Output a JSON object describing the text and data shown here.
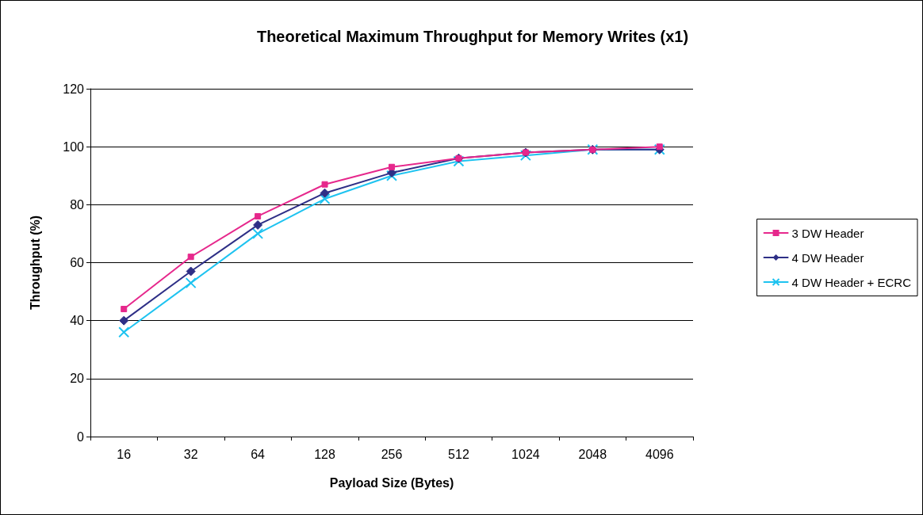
{
  "chart_data": {
    "type": "line",
    "title": "Theoretical Maximum Throughput for Memory Writes (x1)",
    "xlabel": "Payload Size (Bytes)",
    "ylabel": "Throughput (%)",
    "categories": [
      "16",
      "32",
      "64",
      "128",
      "256",
      "512",
      "1024",
      "2048",
      "4096"
    ],
    "series": [
      {
        "name": "3 DW Header",
        "color": "#e6288c",
        "marker": "square",
        "values": [
          44,
          62,
          76,
          87,
          93,
          96,
          98,
          99,
          100
        ]
      },
      {
        "name": "4 DW Header",
        "color": "#2e2f86",
        "marker": "diamond",
        "values": [
          40,
          57,
          73,
          84,
          91,
          96,
          98,
          99,
          99
        ]
      },
      {
        "name": "4 DW Header + ECRC",
        "color": "#1ec3f0",
        "marker": "cross",
        "values": [
          36,
          53,
          70,
          82,
          90,
          95,
          97,
          99,
          99
        ]
      }
    ],
    "ylim": [
      0,
      120
    ],
    "yticks": [
      0,
      20,
      40,
      60,
      80,
      100,
      120
    ],
    "grid": "y",
    "legend": "right"
  }
}
